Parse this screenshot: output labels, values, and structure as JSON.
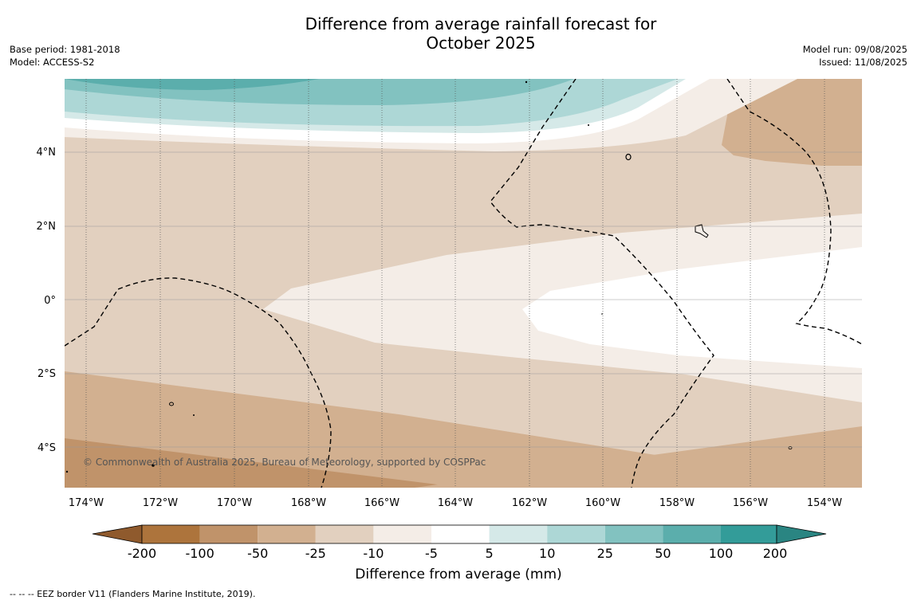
{
  "title_line1": "Difference from average rainfall forecast for",
  "title_line2": "October 2025",
  "meta_left": {
    "base_period": "Base period: 1981-2018",
    "model": "Model: ACCESS-S2"
  },
  "meta_right": {
    "model_run": "Model run: 09/08/2025",
    "issued": "Issued: 11/08/2025"
  },
  "copyright": "© Commonwealth of Australia 2025, Bureau of Meteorology, supported by COSPPac",
  "footer_note": "--  --  -- EEZ border V11 (Flanders Marine Institute, 2019).",
  "lat_labels": [
    "4°N",
    "2°N",
    "0°",
    "2°S",
    "4°S"
  ],
  "lon_labels": [
    "174°W",
    "172°W",
    "170°W",
    "168°W",
    "166°W",
    "164°W",
    "162°W",
    "160°W",
    "158°W",
    "156°W",
    "154°W"
  ],
  "colorbar": {
    "label": "Difference from average (mm)",
    "tick_labels": [
      "-200",
      "-100",
      "-50",
      "-25",
      "-10",
      "-5",
      "5",
      "10",
      "25",
      "50",
      "100",
      "200"
    ],
    "colors": [
      "#ad743c",
      "#c0936a",
      "#d2b090",
      "#e2d0bf",
      "#f4ede7",
      "#ffffff",
      "#d5e9e8",
      "#add7d6",
      "#82c2c0",
      "#5baeac",
      "#339c99"
    ],
    "under_color": "#8f5a2d",
    "over_color": "#2a8582"
  }
}
